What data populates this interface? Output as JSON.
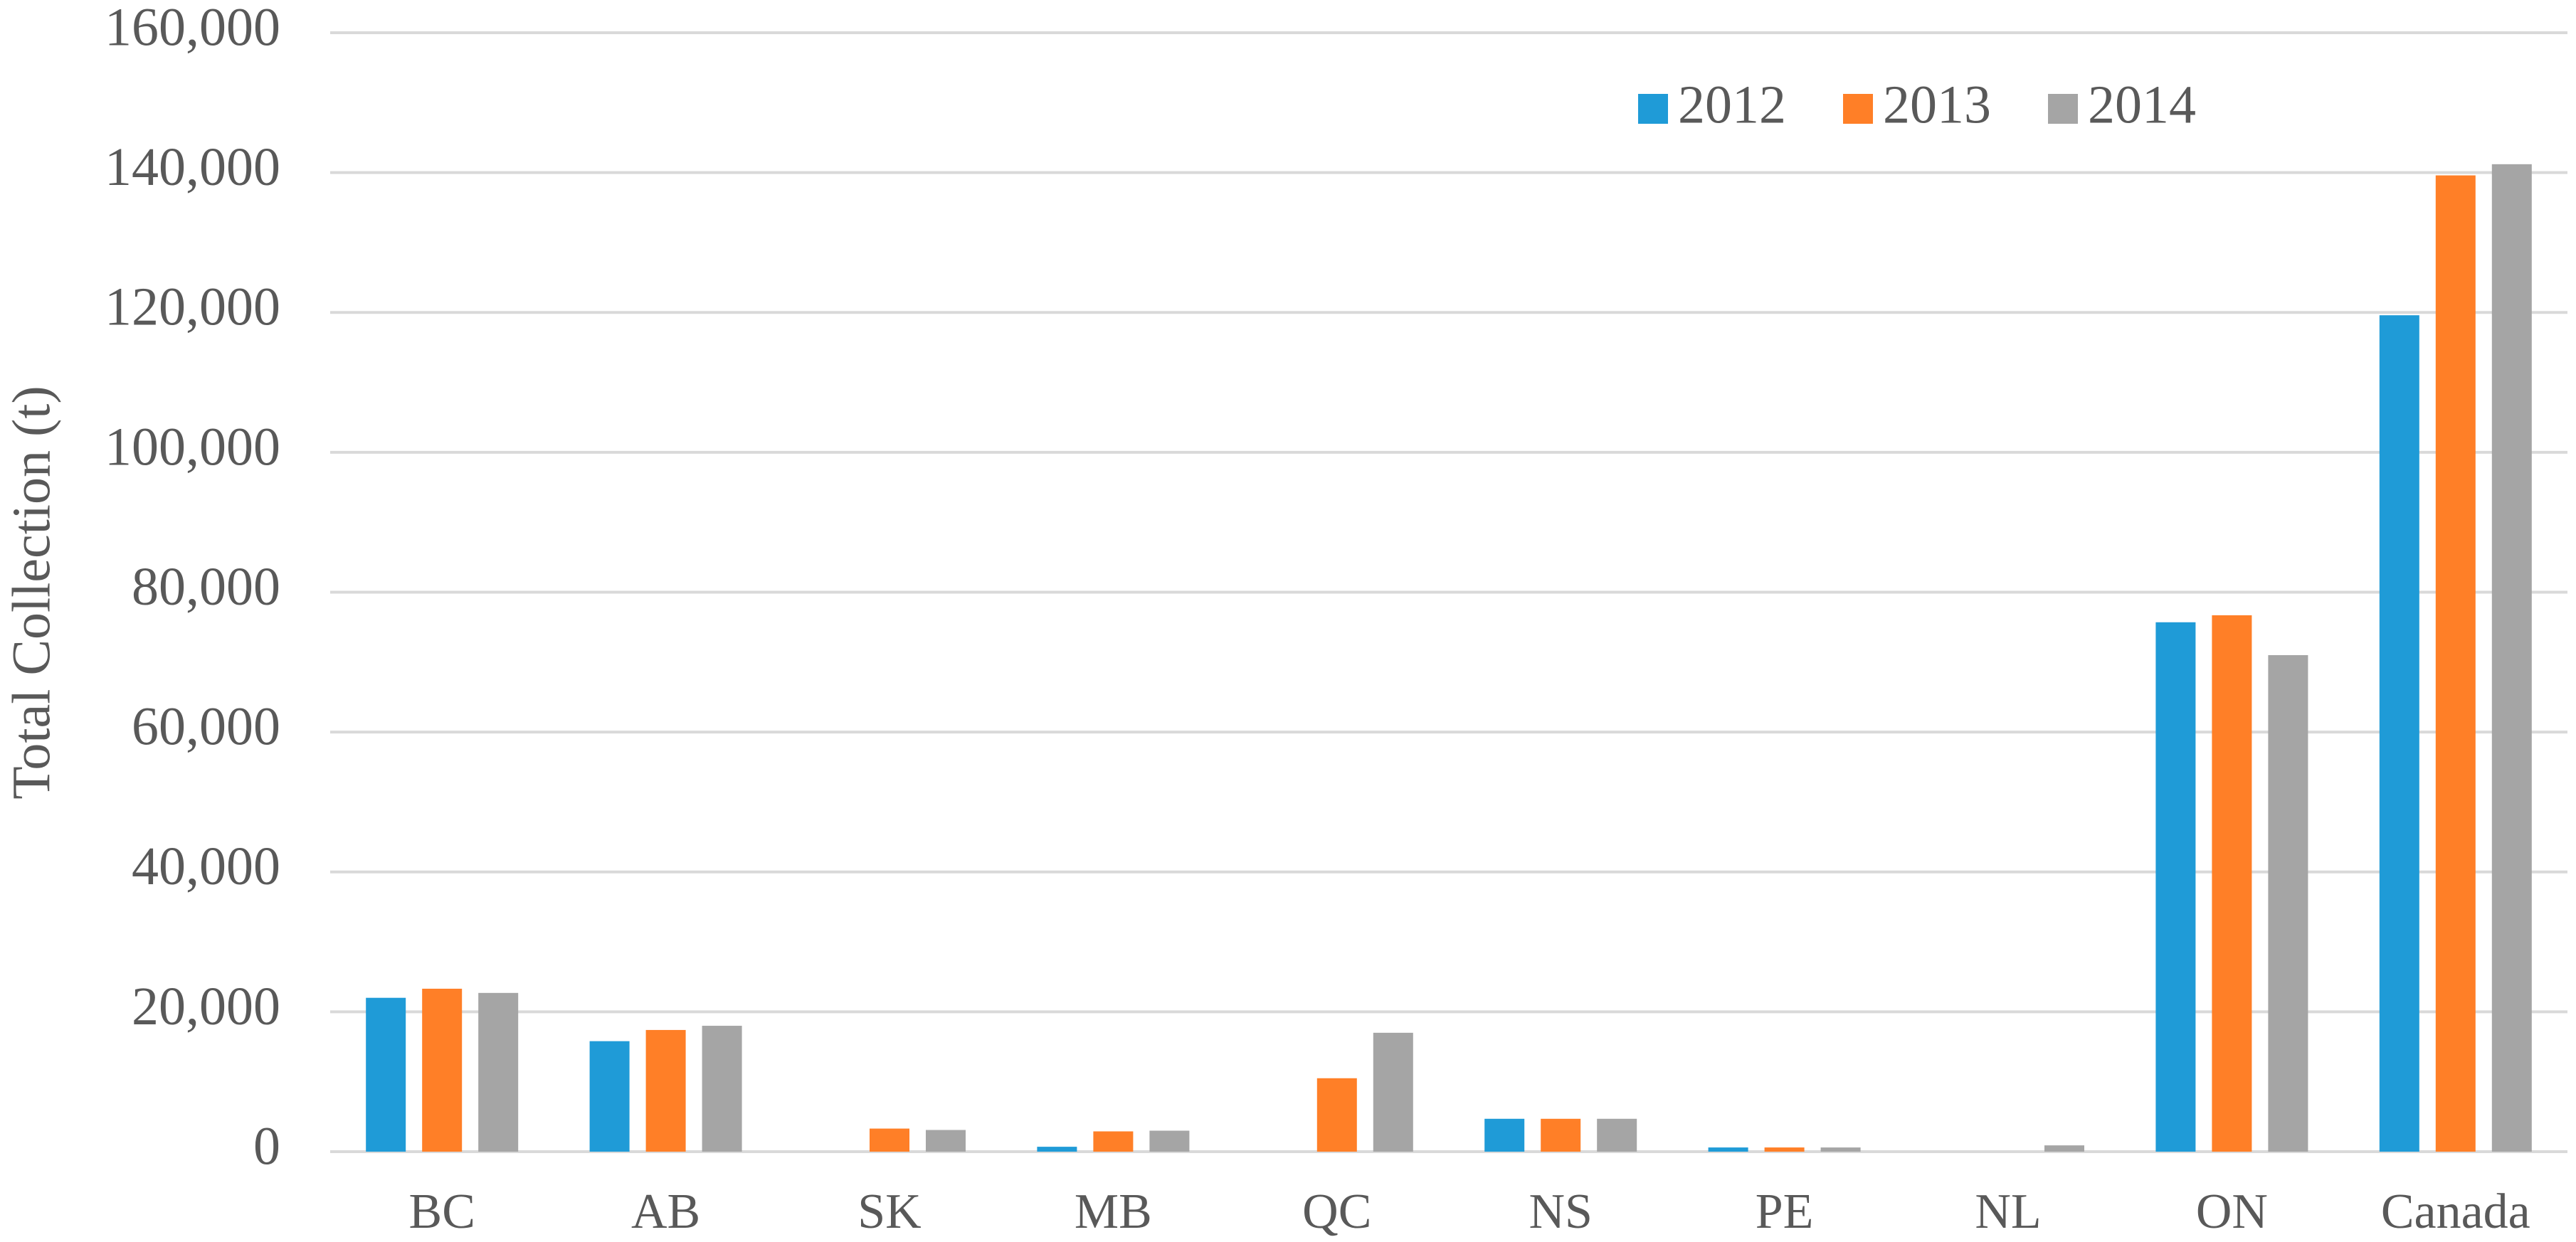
{
  "chart_data": {
    "type": "bar",
    "y_label": "Total Collection (t)",
    "categories": [
      "BC",
      "AB",
      "SK",
      "MB",
      "QC",
      "NS",
      "PE",
      "NL",
      "ON",
      "Canada"
    ],
    "series": [
      {
        "name": "2012",
        "color": "#1f9bd7",
        "values": [
          22000,
          15800,
          null,
          700,
          null,
          4700,
          600,
          null,
          75700,
          119600
        ]
      },
      {
        "name": "2013",
        "color": "#ff7f27",
        "values": [
          23300,
          17400,
          3300,
          2900,
          10500,
          4700,
          600,
          null,
          76700,
          139600
        ]
      },
      {
        "name": "2014",
        "color": "#a5a5a5",
        "values": [
          22700,
          18000,
          3100,
          3000,
          17000,
          4700,
          600,
          900,
          71000,
          141200
        ]
      }
    ],
    "ylim": [
      0,
      160000
    ],
    "yticks": [
      0,
      {
        "value": 20000,
        "label": "20,000"
      },
      {
        "value": 40000,
        "label": "40,000"
      },
      {
        "value": 60000,
        "label": "60,000"
      },
      {
        "value": 80000,
        "label": "80,000"
      },
      {
        "value": 100000,
        "label": "100,000"
      },
      {
        "value": 120000,
        "label": "120,000"
      },
      {
        "value": 140000,
        "label": "140,000"
      },
      {
        "value": 160000,
        "label": "160,000"
      }
    ],
    "grid": true,
    "legend": "top-right"
  }
}
